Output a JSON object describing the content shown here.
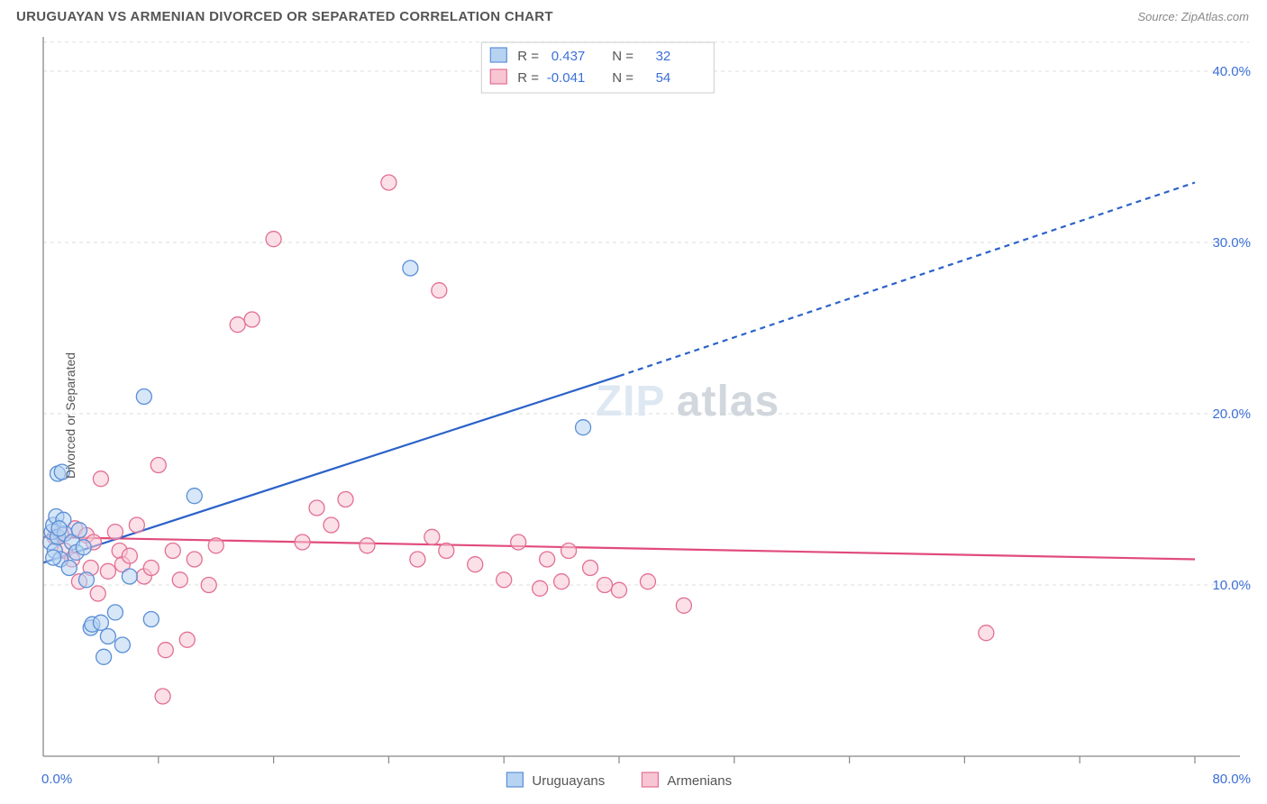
{
  "header": {
    "title": "URUGUAYAN VS ARMENIAN DIVORCED OR SEPARATED CORRELATION CHART",
    "source_prefix": "Source: ",
    "source_name": "ZipAtlas.com"
  },
  "axes": {
    "ylabel": "Divorced or Separated",
    "xlim": [
      0,
      80
    ],
    "ylim": [
      0,
      42
    ],
    "yticks": [
      10,
      20,
      30,
      40
    ],
    "ytick_labels": [
      "10.0%",
      "20.0%",
      "30.0%",
      "40.0%"
    ],
    "xtick_minor_step": 8,
    "xmin_label": "0.0%",
    "xmax_label": "80.0%"
  },
  "legend_top": {
    "series": [
      {
        "r_label": "R =",
        "r_value": "0.437",
        "n_label": "N =",
        "n_value": "32",
        "swatch": "blue"
      },
      {
        "r_label": "R =",
        "r_value": "-0.041",
        "n_label": "N =",
        "n_value": "54",
        "swatch": "pink"
      }
    ]
  },
  "legend_bottom": {
    "items": [
      {
        "label": "Uruguayans",
        "swatch": "blue"
      },
      {
        "label": "Armenians",
        "swatch": "pink"
      }
    ]
  },
  "watermark": {
    "text1": "ZIP",
    "text2": "atlas"
  },
  "style": {
    "background_color": "#ffffff",
    "grid_color": "#e4e4e4",
    "grid_dash": "4,4",
    "axis_color": "#888888",
    "tick_color": "#888888",
    "label_color": "#3b6fd6",
    "marker_radius": 8.5,
    "marker_stroke_width": 1.3,
    "series": {
      "uruguayans": {
        "fill": "#b7d3f2",
        "stroke": "#5b8fd6",
        "fill_opacity": 0.55,
        "line_color": "#2b62c9",
        "line_width": 2.2
      },
      "armenians": {
        "fill": "#f8c6d3",
        "stroke": "#e36f94",
        "fill_opacity": 0.55,
        "line_color": "#e14b7b",
        "line_width": 2.2
      }
    },
    "trend_dash_extend": "6,5"
  },
  "trend_lines": {
    "uruguayans": {
      "x1": 0,
      "y1": 11.3,
      "x2_solid": 40,
      "y2_solid": 22.2,
      "x2_ext": 80,
      "y2_ext": 33.5
    },
    "armenians": {
      "x1": 0,
      "y1": 12.8,
      "x2": 80,
      "y2": 11.5
    }
  },
  "points": {
    "uruguayans": [
      [
        0.5,
        12.5
      ],
      [
        0.6,
        13.1
      ],
      [
        0.7,
        13.5
      ],
      [
        0.8,
        12.0
      ],
      [
        0.9,
        14.0
      ],
      [
        1.0,
        12.8
      ],
      [
        1.2,
        11.5
      ],
      [
        1.0,
        16.5
      ],
      [
        1.3,
        16.6
      ],
      [
        1.5,
        13.0
      ],
      [
        1.8,
        11.0
      ],
      [
        2.0,
        12.5
      ],
      [
        2.3,
        11.9
      ],
      [
        2.5,
        13.2
      ],
      [
        3.0,
        10.3
      ],
      [
        3.3,
        7.5
      ],
      [
        3.4,
        7.7
      ],
      [
        4.0,
        7.8
      ],
      [
        4.2,
        5.8
      ],
      [
        4.5,
        7.0
      ],
      [
        5.0,
        8.4
      ],
      [
        5.5,
        6.5
      ],
      [
        6.0,
        10.5
      ],
      [
        7.5,
        8.0
      ],
      [
        7.0,
        21.0
      ],
      [
        10.5,
        15.2
      ],
      [
        25.5,
        28.5
      ],
      [
        37.5,
        19.2
      ],
      [
        1.4,
        13.8
      ],
      [
        2.8,
        12.2
      ],
      [
        1.1,
        13.3
      ],
      [
        0.7,
        11.6
      ]
    ],
    "armenians": [
      [
        0.8,
        12.8
      ],
      [
        1.2,
        13.0
      ],
      [
        1.5,
        12.0
      ],
      [
        2.0,
        11.5
      ],
      [
        2.2,
        13.3
      ],
      [
        2.5,
        10.2
      ],
      [
        3.0,
        12.9
      ],
      [
        3.3,
        11.0
      ],
      [
        3.5,
        12.5
      ],
      [
        3.8,
        9.5
      ],
      [
        4.0,
        16.2
      ],
      [
        4.5,
        10.8
      ],
      [
        5.0,
        13.1
      ],
      [
        5.3,
        12.0
      ],
      [
        5.5,
        11.2
      ],
      [
        6.0,
        11.7
      ],
      [
        6.5,
        13.5
      ],
      [
        7.0,
        10.5
      ],
      [
        7.5,
        11.0
      ],
      [
        8.0,
        17.0
      ],
      [
        8.5,
        6.2
      ],
      [
        9.0,
        12.0
      ],
      [
        9.5,
        10.3
      ],
      [
        10.0,
        6.8
      ],
      [
        10.5,
        11.5
      ],
      [
        12.0,
        12.3
      ],
      [
        13.5,
        25.2
      ],
      [
        14.5,
        25.5
      ],
      [
        16.0,
        30.2
      ],
      [
        18.0,
        12.5
      ],
      [
        19.0,
        14.5
      ],
      [
        20.0,
        13.5
      ],
      [
        21.0,
        15.0
      ],
      [
        22.5,
        12.3
      ],
      [
        24.0,
        33.5
      ],
      [
        26.0,
        11.5
      ],
      [
        27.0,
        12.8
      ],
      [
        27.5,
        27.2
      ],
      [
        28.0,
        12.0
      ],
      [
        30.0,
        11.2
      ],
      [
        32.0,
        10.3
      ],
      [
        33.0,
        12.5
      ],
      [
        34.5,
        9.8
      ],
      [
        35.0,
        11.5
      ],
      [
        36.0,
        10.2
      ],
      [
        36.5,
        12.0
      ],
      [
        38.0,
        11.0
      ],
      [
        39.0,
        10.0
      ],
      [
        40.0,
        9.7
      ],
      [
        42.0,
        10.2
      ],
      [
        44.5,
        8.8
      ],
      [
        8.3,
        3.5
      ],
      [
        65.5,
        7.2
      ],
      [
        11.5,
        10.0
      ]
    ]
  }
}
